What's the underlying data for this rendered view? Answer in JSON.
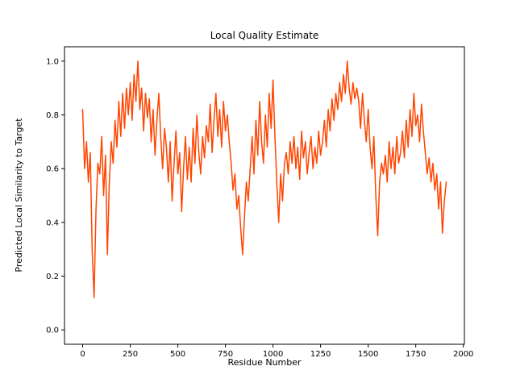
{
  "figure": {
    "background": "#ffffff"
  },
  "chart_data": {
    "type": "line",
    "title": "Local Quality Estimate",
    "xlabel": "Residue Number",
    "ylabel": "Predicted Local Similarity to Target",
    "line_color": "#FF4500",
    "line_width": 1.5,
    "grid": false,
    "legend_position": "none",
    "xlim": [
      -95.5,
      2005.5
    ],
    "ylim": [
      -0.0535,
      1.0535
    ],
    "xticks": [
      0,
      250,
      500,
      750,
      1000,
      1250,
      1500,
      1750,
      2000
    ],
    "yticks": [
      0.0,
      0.2,
      0.4,
      0.6,
      0.8,
      1.0
    ],
    "x_start": 0,
    "x_step": 10,
    "y": [
      0.82,
      0.6,
      0.7,
      0.55,
      0.66,
      0.3,
      0.12,
      0.45,
      0.62,
      0.58,
      0.72,
      0.5,
      0.65,
      0.28,
      0.55,
      0.7,
      0.62,
      0.78,
      0.68,
      0.85,
      0.72,
      0.88,
      0.75,
      0.9,
      0.8,
      0.92,
      0.78,
      0.95,
      0.85,
      1.0,
      0.82,
      0.9,
      0.74,
      0.88,
      0.79,
      0.86,
      0.7,
      0.82,
      0.65,
      0.78,
      0.88,
      0.72,
      0.6,
      0.75,
      0.68,
      0.55,
      0.7,
      0.48,
      0.62,
      0.74,
      0.58,
      0.66,
      0.44,
      0.6,
      0.72,
      0.56,
      0.68,
      0.55,
      0.75,
      0.62,
      0.8,
      0.66,
      0.58,
      0.72,
      0.64,
      0.76,
      0.7,
      0.84,
      0.66,
      0.78,
      0.88,
      0.72,
      0.82,
      0.68,
      0.85,
      0.74,
      0.8,
      0.7,
      0.62,
      0.52,
      0.58,
      0.45,
      0.5,
      0.38,
      0.28,
      0.42,
      0.55,
      0.48,
      0.6,
      0.72,
      0.58,
      0.78,
      0.65,
      0.85,
      0.7,
      0.62,
      0.8,
      0.68,
      0.88,
      0.75,
      0.93,
      0.72,
      0.55,
      0.4,
      0.58,
      0.48,
      0.62,
      0.66,
      0.58,
      0.7,
      0.62,
      0.72,
      0.6,
      0.68,
      0.56,
      0.74,
      0.64,
      0.7,
      0.58,
      0.66,
      0.72,
      0.6,
      0.68,
      0.62,
      0.74,
      0.65,
      0.7,
      0.78,
      0.68,
      0.82,
      0.74,
      0.86,
      0.78,
      0.88,
      0.82,
      0.92,
      0.85,
      0.95,
      0.88,
      1.0,
      0.9,
      0.84,
      0.92,
      0.86,
      0.9,
      0.85,
      0.75,
      0.88,
      0.78,
      0.7,
      0.82,
      0.68,
      0.6,
      0.72,
      0.5,
      0.35,
      0.55,
      0.62,
      0.58,
      0.65,
      0.55,
      0.7,
      0.6,
      0.68,
      0.58,
      0.72,
      0.62,
      0.66,
      0.74,
      0.64,
      0.78,
      0.68,
      0.82,
      0.72,
      0.88,
      0.76,
      0.8,
      0.7,
      0.84,
      0.74,
      0.66,
      0.58,
      0.64,
      0.55,
      0.62,
      0.52,
      0.58,
      0.45,
      0.55,
      0.36,
      0.48,
      0.55
    ]
  }
}
